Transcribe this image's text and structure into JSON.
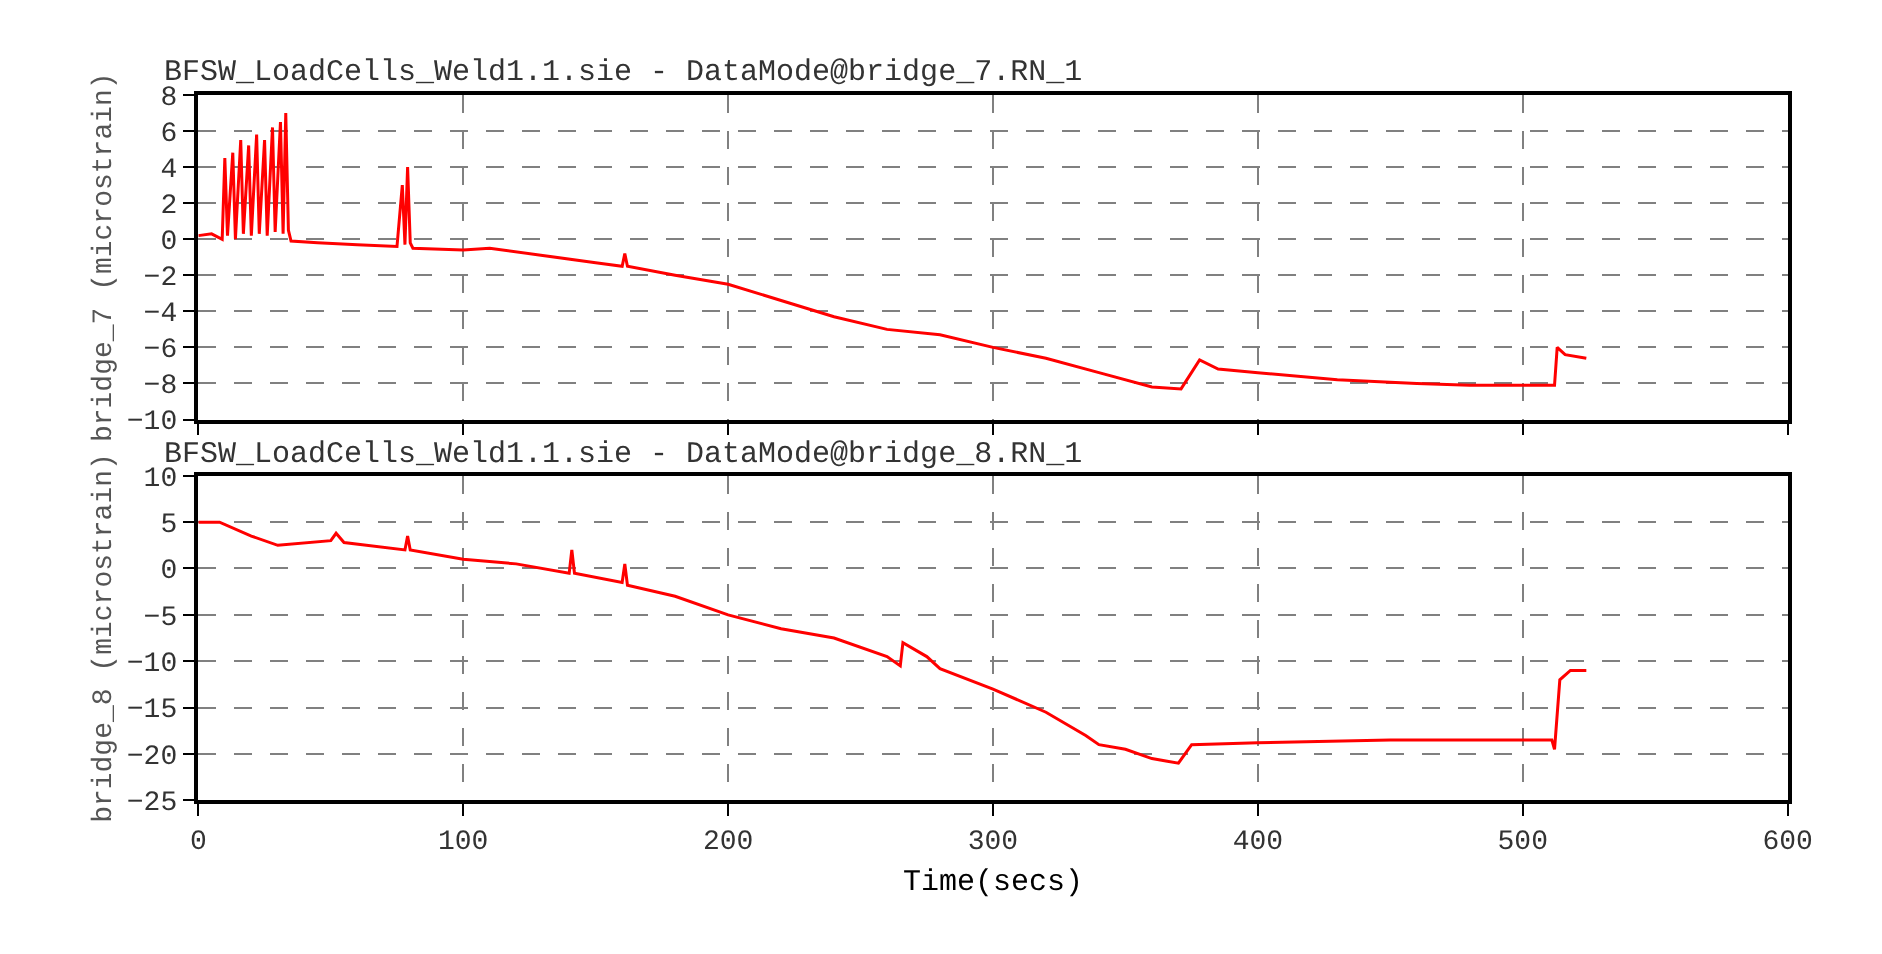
{
  "chart_data": [
    {
      "type": "line",
      "title": "BFSW_LoadCells_Weld1.1.sie - DataMode@bridge_7.RN_1",
      "ylabel": "bridge_7 (microstrain)",
      "x": [
        0,
        5,
        9,
        10,
        11,
        13,
        14,
        16,
        17,
        19,
        20,
        22,
        23,
        25,
        26,
        28,
        29,
        31,
        32,
        33,
        34,
        35,
        45,
        60,
        75,
        77,
        78,
        79,
        80,
        81,
        100,
        110,
        130,
        150,
        160,
        161,
        162,
        180,
        200,
        220,
        240,
        260,
        280,
        300,
        320,
        340,
        360,
        371,
        378,
        385,
        400,
        430,
        460,
        480,
        500,
        512,
        513,
        516,
        524
      ],
      "series": [
        {
          "color": "#ff0000",
          "values": [
            0.2,
            0.3,
            0.0,
            4.5,
            0.2,
            4.8,
            0.0,
            5.5,
            0.3,
            5.2,
            0.2,
            5.8,
            0.3,
            5.5,
            0.2,
            6.2,
            0.4,
            6.5,
            0.3,
            7.0,
            0.5,
            -0.1,
            -0.2,
            -0.3,
            -0.4,
            3.0,
            -0.3,
            4.0,
            -0.2,
            -0.5,
            -0.6,
            -0.5,
            -0.9,
            -1.3,
            -1.5,
            -0.8,
            -1.5,
            -2.0,
            -2.5,
            -3.4,
            -4.3,
            -5.0,
            -5.3,
            -6.0,
            -6.6,
            -7.4,
            -8.2,
            -8.3,
            -6.7,
            -7.2,
            -7.4,
            -7.8,
            -8.0,
            -8.1,
            -8.1,
            -8.1,
            -6.0,
            -6.4,
            -6.6
          ]
        }
      ],
      "xlim": [
        0,
        600
      ],
      "xticks": [
        0,
        100,
        200,
        300,
        400,
        500,
        600
      ],
      "ylim": [
        -10,
        8
      ],
      "yticks": [
        -10,
        -8,
        -6,
        -4,
        -2,
        0,
        2,
        4,
        6,
        8
      ],
      "grid": true,
      "tick_labels": "y"
    },
    {
      "type": "line",
      "title": "BFSW_LoadCells_Weld1.1.sie - DataMode@bridge_8.RN_1",
      "ylabel": "bridge_8 (microstrain)",
      "xlabel": "Time(secs)",
      "x": [
        0,
        8,
        20,
        30,
        50,
        52,
        55,
        78,
        79,
        80,
        100,
        120,
        140,
        141,
        142,
        160,
        161,
        162,
        180,
        200,
        220,
        240,
        260,
        265,
        266,
        275,
        280,
        300,
        320,
        335,
        340,
        350,
        360,
        370,
        375,
        400,
        450,
        500,
        511,
        512,
        514,
        518,
        524
      ],
      "series": [
        {
          "color": "#ff0000",
          "values": [
            5.0,
            5.0,
            3.5,
            2.5,
            3.0,
            3.8,
            2.8,
            2.0,
            3.5,
            2.0,
            1.0,
            0.5,
            -0.5,
            2.0,
            -0.5,
            -1.5,
            0.5,
            -1.8,
            -3.0,
            -5.0,
            -6.5,
            -7.5,
            -9.5,
            -10.5,
            -8.0,
            -9.5,
            -10.8,
            -13.0,
            -15.5,
            -18.0,
            -19.0,
            -19.5,
            -20.5,
            -21.0,
            -19.0,
            -18.8,
            -18.5,
            -18.5,
            -18.5,
            -19.5,
            -12.0,
            -11.0,
            -11.0
          ]
        }
      ],
      "xlim": [
        0,
        600
      ],
      "xticks": [
        0,
        100,
        200,
        300,
        400,
        500,
        600
      ],
      "ylim": [
        -25,
        10
      ],
      "yticks": [
        -25,
        -20,
        -15,
        -10,
        -5,
        0,
        5,
        10
      ],
      "grid": true
    }
  ]
}
